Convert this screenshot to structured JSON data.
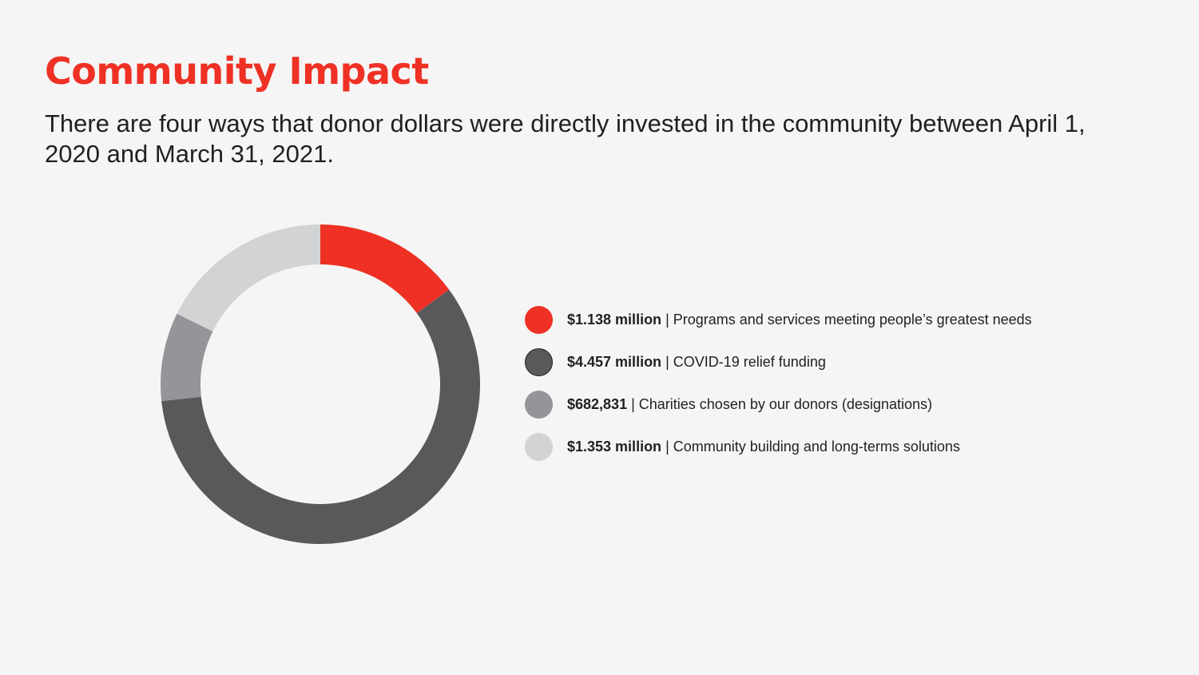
{
  "title": "Community Impact",
  "subtitle": "There are four ways that donor dollars were directly invested in the community between April 1, 2020 and March 31, 2021.",
  "legend_separator": " | ",
  "colors": {
    "accent": "#ee3124",
    "background": "#f5f5f5"
  },
  "chart_data": {
    "type": "pie",
    "donut": true,
    "start": "top",
    "direction": "clockwise",
    "legend_position": "right",
    "slices": [
      {
        "amount_label": "$1.138 million",
        "label": "Programs and services meeting people’s greatest needs",
        "value": 1138000,
        "color": "#ee3124"
      },
      {
        "amount_label": "$4.457 million",
        "label": "COVID-19 relief funding",
        "value": 4457000,
        "color": "#58595b"
      },
      {
        "amount_label": "$682,831",
        "label": "Charities chosen by our donors (designations)",
        "value": 682831,
        "color": "#939598"
      },
      {
        "amount_label": "$1.353 million",
        "label": "Community building and long-terms solutions",
        "value": 1353000,
        "color": "#d1d3d4"
      }
    ]
  }
}
